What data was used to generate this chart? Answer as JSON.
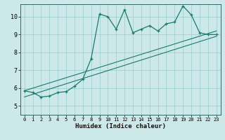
{
  "xlabel": "Humidex (Indice chaleur)",
  "xlim": [
    -0.5,
    23.5
  ],
  "ylim": [
    4.5,
    10.7
  ],
  "xticks": [
    0,
    1,
    2,
    3,
    4,
    5,
    6,
    7,
    8,
    9,
    10,
    11,
    12,
    13,
    14,
    15,
    16,
    17,
    18,
    19,
    20,
    21,
    22,
    23
  ],
  "yticks": [
    5,
    6,
    7,
    8,
    9,
    10
  ],
  "bg_color": "#cce8e8",
  "line_color": "#1a7a6a",
  "grid_color": "#99cccc",
  "data_x": [
    0,
    1,
    2,
    3,
    4,
    5,
    6,
    7,
    8,
    9,
    10,
    11,
    12,
    13,
    14,
    15,
    16,
    17,
    18,
    19,
    20,
    21,
    22,
    23
  ],
  "data_y": [
    5.85,
    5.75,
    5.5,
    5.55,
    5.75,
    5.8,
    6.1,
    6.5,
    7.65,
    10.15,
    10.0,
    9.3,
    10.4,
    9.1,
    9.3,
    9.5,
    9.2,
    9.6,
    9.7,
    10.6,
    10.1,
    9.1,
    9.0,
    9.0
  ],
  "line1_x": [
    0,
    23
  ],
  "line1_y": [
    5.85,
    9.2
  ],
  "line2_x": [
    0,
    23
  ],
  "line2_y": [
    5.5,
    8.9
  ]
}
